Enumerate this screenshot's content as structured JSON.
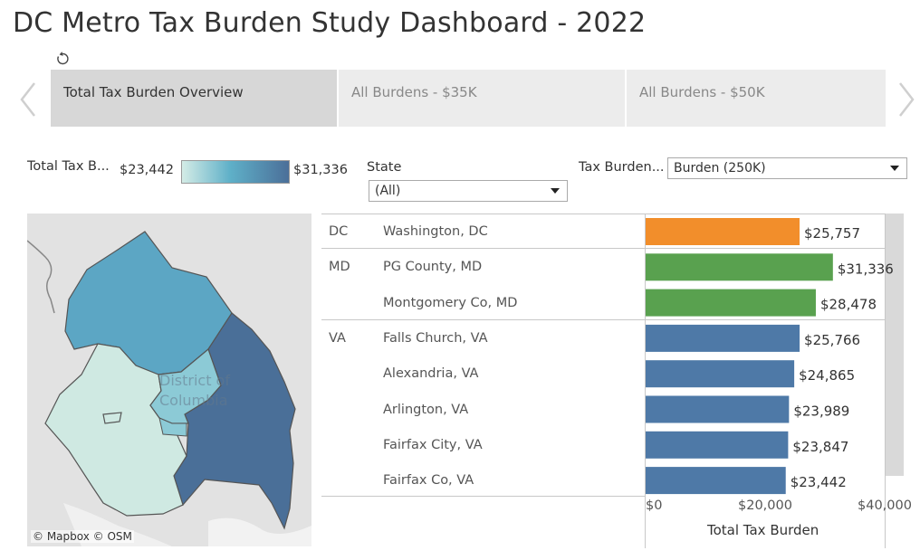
{
  "title": "DC Metro Tax Burden Study Dashboard - 2022",
  "toolbar": {
    "revert_icon": "revert-icon"
  },
  "tabs": [
    {
      "label": "Total Tax Burden Overview",
      "active": true
    },
    {
      "label": "All Burdens - $35K",
      "active": false
    },
    {
      "label": "All Burdens - $50K",
      "active": false
    }
  ],
  "legend": {
    "title": "Total Tax B...",
    "min_label": "$23,442",
    "max_label": "$31,336",
    "colors": [
      "#d4ece6",
      "#5fb0c8",
      "#4b6f99"
    ]
  },
  "filters": {
    "state": {
      "label": "State",
      "value": "(All)"
    },
    "burden": {
      "label": "Tax Burden...",
      "value": "Burden (250K)"
    }
  },
  "map": {
    "label_line1": "District of",
    "label_line2": "Columbia",
    "credit": "© Mapbox  © OSM",
    "colors": {
      "northwest": "#5ca6c4",
      "east": "#4a6f98",
      "west": "#cfe9e2",
      "center": "#8ccad6"
    }
  },
  "chart_data": {
    "type": "bar",
    "orientation": "horizontal",
    "xlabel": "Total Tax Burden",
    "xlim": [
      0,
      40000
    ],
    "xticks": [
      "$0",
      "$20,000",
      "$40,000"
    ],
    "rows": [
      {
        "state": "DC",
        "jurisdiction": "Washington, DC",
        "value": 25757,
        "label": "$25,757",
        "color": "#f28e2b"
      },
      {
        "state": "MD",
        "jurisdiction": "PG County, MD",
        "value": 31336,
        "label": "$31,336",
        "color": "#59a14f"
      },
      {
        "state": "",
        "jurisdiction": "Montgomery Co, MD",
        "value": 28478,
        "label": "$28,478",
        "color": "#59a14f"
      },
      {
        "state": "VA",
        "jurisdiction": "Falls Church, VA",
        "value": 25766,
        "label": "$25,766",
        "color": "#4e79a7"
      },
      {
        "state": "",
        "jurisdiction": "Alexandria, VA",
        "value": 24865,
        "label": "$24,865",
        "color": "#4e79a7"
      },
      {
        "state": "",
        "jurisdiction": "Arlington, VA",
        "value": 23989,
        "label": "$23,989",
        "color": "#4e79a7"
      },
      {
        "state": "",
        "jurisdiction": "Fairfax City, VA",
        "value": 23847,
        "label": "$23,847",
        "color": "#4e79a7"
      },
      {
        "state": "",
        "jurisdiction": "Fairfax Co, VA",
        "value": 23442,
        "label": "$23,442",
        "color": "#4e79a7"
      }
    ]
  }
}
